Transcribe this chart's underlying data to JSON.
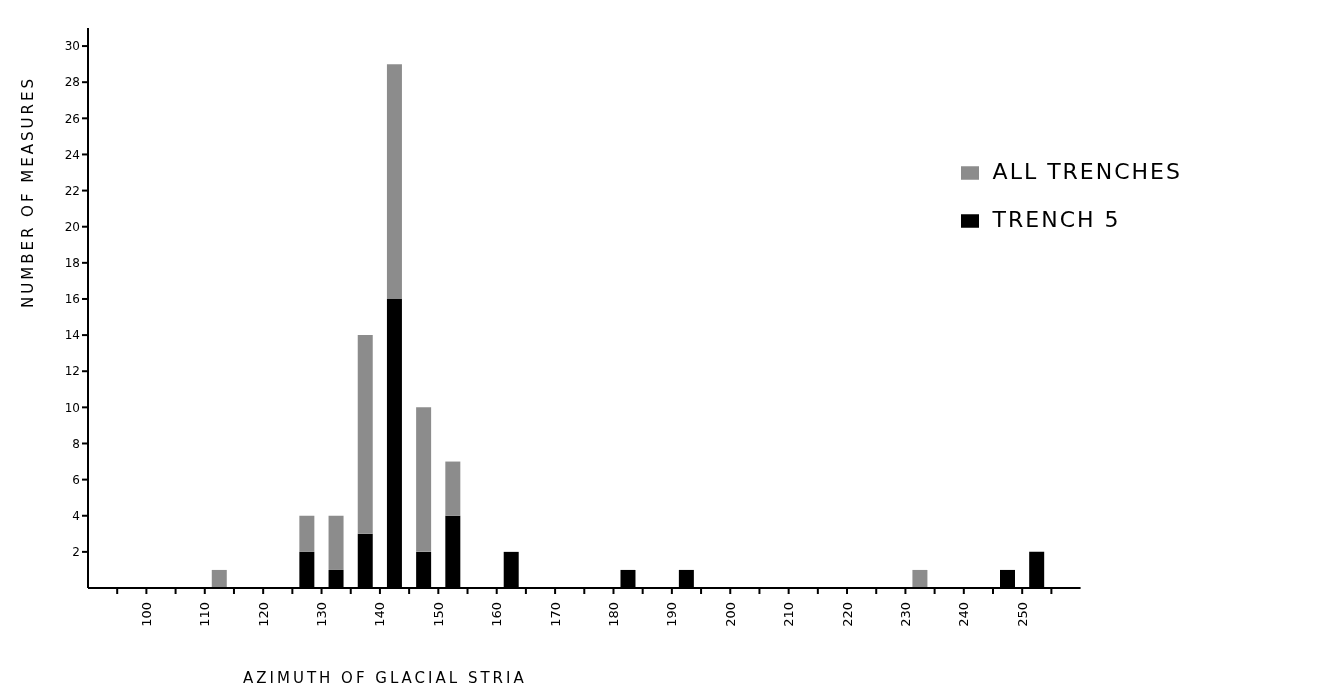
{
  "chart_data": {
    "type": "bar",
    "stacked": true,
    "xlabel": "AZIMUTH OF GLACIAL STRIA",
    "ylabel": "NUMBER OF MEASURES",
    "x": [
      112.5,
      127.5,
      132.5,
      137.5,
      142.5,
      147.5,
      152.5,
      162.5,
      182.5,
      192.5,
      232.5,
      247.5,
      252.5
    ],
    "series": [
      {
        "name": "TRENCH 5",
        "color": "#000000",
        "values": [
          null,
          2,
          1,
          3,
          16,
          2,
          4,
          2,
          1,
          1,
          null,
          1,
          2
        ]
      },
      {
        "name": "ALL TRENCHES",
        "color": "#8c8c8c",
        "values": [
          1,
          2,
          3,
          11,
          13,
          8,
          3,
          null,
          null,
          null,
          1,
          null,
          null
        ]
      }
    ],
    "xlim": [
      90,
      260
    ],
    "xticks": [
      {
        "value": 95,
        "label": null
      },
      100,
      {
        "value": 105,
        "label": null
      },
      110,
      {
        "value": 115,
        "label": null
      },
      120,
      {
        "value": 125,
        "label": null
      },
      130,
      {
        "value": 135,
        "label": null
      },
      140,
      {
        "value": 145,
        "label": null
      },
      150,
      {
        "value": 155,
        "label": null
      },
      160,
      {
        "value": 165,
        "label": null
      },
      170,
      {
        "value": 175,
        "label": null
      },
      180,
      {
        "value": 185,
        "label": null
      },
      190,
      {
        "value": 195,
        "label": null
      },
      200,
      {
        "value": 205,
        "label": null
      },
      210,
      {
        "value": 215,
        "label": null
      },
      220,
      {
        "value": 225,
        "label": null
      },
      230,
      {
        "value": 235,
        "label": null
      },
      240,
      {
        "value": 245,
        "label": null
      },
      250,
      {
        "value": 255,
        "label": null
      }
    ],
    "ylim": [
      0,
      31
    ],
    "yticks": [
      2,
      4,
      6,
      8,
      10,
      12,
      14,
      16,
      18,
      20,
      22,
      24,
      26,
      28,
      30
    ],
    "grid": false,
    "legend": "top right"
  }
}
